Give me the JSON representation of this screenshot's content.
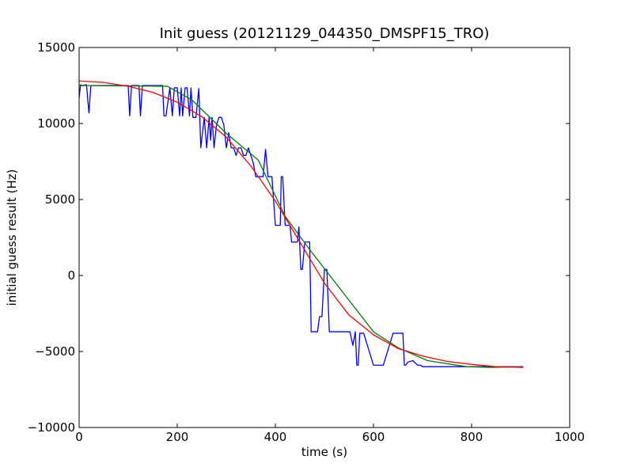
{
  "chart_data": {
    "type": "line",
    "title": "Init guess (20121129_044350_DMSPF15_TRO)",
    "xlabel": "time (s)",
    "ylabel": "initial guess result (Hz)",
    "xlim": [
      0,
      1000
    ],
    "ylim": [
      -10000,
      15000
    ],
    "xticks": [
      0,
      200,
      400,
      600,
      800,
      1000
    ],
    "yticks": [
      -10000,
      -5000,
      0,
      5000,
      10000,
      15000
    ],
    "xtick_labels": [
      "0",
      "200",
      "400",
      "600",
      "800",
      "1000"
    ],
    "ytick_labels": [
      "−10000",
      "−5000",
      "0",
      "5000",
      "10000",
      "15000"
    ],
    "grid": false,
    "legend": "none",
    "series": [
      {
        "color": "#0000ff",
        "x": [
          0,
          3,
          6,
          15,
          20,
          24,
          28,
          60,
          100,
          103,
          107,
          122,
          125,
          129,
          170,
          173,
          177,
          185,
          190,
          194,
          200,
          205,
          208,
          211,
          216,
          220,
          225,
          228,
          232,
          238,
          244,
          248,
          255,
          260,
          265,
          268,
          271,
          275,
          280,
          285,
          290,
          295,
          300,
          305,
          310,
          315,
          320,
          325,
          330,
          335,
          340,
          345,
          350,
          355,
          360,
          365,
          370,
          375,
          380,
          385,
          387,
          390,
          393,
          400,
          410,
          412,
          415,
          420,
          423,
          426,
          430,
          433,
          440,
          445,
          448,
          452,
          455,
          460,
          465,
          470,
          473,
          477,
          480,
          483,
          486,
          490,
          495,
          500,
          505,
          510,
          520,
          540,
          545,
          548,
          552,
          558,
          563,
          566,
          569,
          572,
          580,
          600,
          620,
          640,
          660,
          663,
          666,
          670,
          680,
          690,
          696,
          700,
          703,
          710,
          713,
          716,
          720,
          725,
          730,
          740,
          745,
          750,
          760,
          765,
          770,
          780,
          782,
          785,
          790,
          793,
          800,
          805,
          810,
          815,
          820,
          830,
          900,
          905
        ],
        "y": [
          11700,
          12550,
          12500,
          12550,
          10700,
          12500,
          12500,
          12500,
          12500,
          10500,
          12500,
          12500,
          10500,
          12500,
          12500,
          10500,
          10500,
          12350,
          10500,
          12350,
          12350,
          10500,
          12350,
          10500,
          12350,
          12350,
          10500,
          12350,
          10400,
          10400,
          12300,
          8400,
          10400,
          8400,
          10400,
          8900,
          10400,
          8400,
          9900,
          10400,
          10400,
          9900,
          8400,
          9400,
          8400,
          8400,
          7900,
          8400,
          8400,
          7900,
          7900,
          8400,
          7900,
          7400,
          6500,
          6500,
          6500,
          6500,
          8300,
          6500,
          6500,
          6500,
          6500,
          3300,
          3300,
          6500,
          6500,
          3300,
          3300,
          3300,
          3300,
          2200,
          2200,
          2200,
          3200,
          400,
          400,
          2200,
          2200,
          2200,
          -3700,
          -3700,
          -3700,
          -3700,
          -3700,
          -2700,
          -2700,
          400,
          400,
          -3700,
          -3700,
          -3700,
          -3700,
          -3700,
          -3700,
          -4600,
          -3700,
          -5900,
          -5900,
          -3800,
          -3800,
          -5900,
          -5900,
          -3800,
          -3800,
          -5900,
          -5900,
          -5700,
          -5600,
          -5900,
          -5900,
          -6000,
          -6000,
          -6000,
          -6000,
          -6000,
          -6000,
          -6000,
          -6000,
          -6000,
          -6000,
          -6000,
          -6000,
          -6000,
          -6000,
          -6000,
          -6000,
          -6000,
          -6000,
          -6000,
          -6000,
          -6000,
          -6000,
          -6000,
          -6000,
          -6000,
          -6000,
          -6000
        ]
      },
      {
        "color": "#008000",
        "x": [
          0,
          180,
          230,
          300,
          365,
          420,
          470,
          600,
          650,
          710,
          790,
          840,
          900
        ],
        "y": [
          12500,
          12450,
          11550,
          9350,
          7600,
          3900,
          1700,
          -3700,
          -4750,
          -5600,
          -6000,
          -6050,
          -6000
        ]
      },
      {
        "color": "#ff0000",
        "x": [
          0,
          50,
          100,
          150,
          200,
          250,
          300,
          350,
          400,
          450,
          500,
          550,
          600,
          650,
          700,
          750,
          800,
          850,
          905
        ],
        "y": [
          12800,
          12700,
          12450,
          12050,
          11400,
          10450,
          9100,
          7200,
          4900,
          2200,
          -500,
          -2600,
          -3900,
          -4800,
          -5300,
          -5650,
          -5850,
          -6000,
          -6050
        ]
      }
    ]
  }
}
